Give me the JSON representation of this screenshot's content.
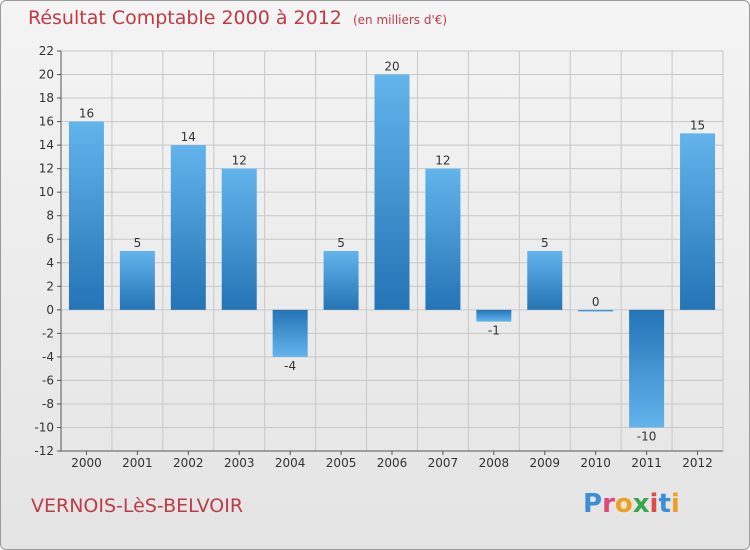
{
  "chart_data": {
    "type": "bar",
    "title": "Résultat Comptable 2000 à 2012",
    "subtitle": "(en milliers d'€)",
    "categories": [
      "2000",
      "2001",
      "2002",
      "2003",
      "2004",
      "2005",
      "2006",
      "2007",
      "2008",
      "2009",
      "2010",
      "2011",
      "2012"
    ],
    "values": [
      16,
      5,
      14,
      12,
      -4,
      5,
      20,
      12,
      -1,
      5,
      0,
      -10,
      15
    ],
    "value_labels": [
      "16",
      "5",
      "14",
      "12",
      "-4",
      "5",
      "20",
      "12",
      "-1",
      "5",
      "0",
      "-10",
      "15"
    ],
    "ylim": [
      -12,
      22
    ],
    "yticks": [
      22,
      20,
      18,
      16,
      14,
      12,
      10,
      8,
      6,
      4,
      2,
      0,
      -2,
      -4,
      -6,
      -8,
      -10,
      -12
    ],
    "ytick_labels": [
      "22",
      "20",
      "18",
      "16",
      "14",
      "12",
      "10",
      "8",
      "6",
      "4",
      "2",
      "0",
      "-2",
      "-4",
      "-6",
      "-8",
      "-10",
      "-12"
    ],
    "xlabel": "",
    "ylabel": "",
    "grid": true,
    "bar_color_light": "#63b4ec",
    "bar_color_dark": "#2474b6"
  },
  "footer": {
    "town": "VERNOIS-LèS-BELVOIR",
    "brand_letters": [
      {
        "ch": "P",
        "color": "#3a8fd6"
      },
      {
        "ch": "r",
        "color": "#e0487a"
      },
      {
        "ch": "o",
        "color": "#f0a020"
      },
      {
        "ch": "x",
        "color": "#3aa84a"
      },
      {
        "ch": "i",
        "color": "#e04a4a"
      },
      {
        "ch": "t",
        "color": "#3a8fd6"
      },
      {
        "ch": "i",
        "color": "#f0a020"
      }
    ]
  },
  "colors": {
    "title": "#bf3b46",
    "axis": "#555555",
    "grid": "#c8c8c8",
    "tick_label": "#333333"
  }
}
